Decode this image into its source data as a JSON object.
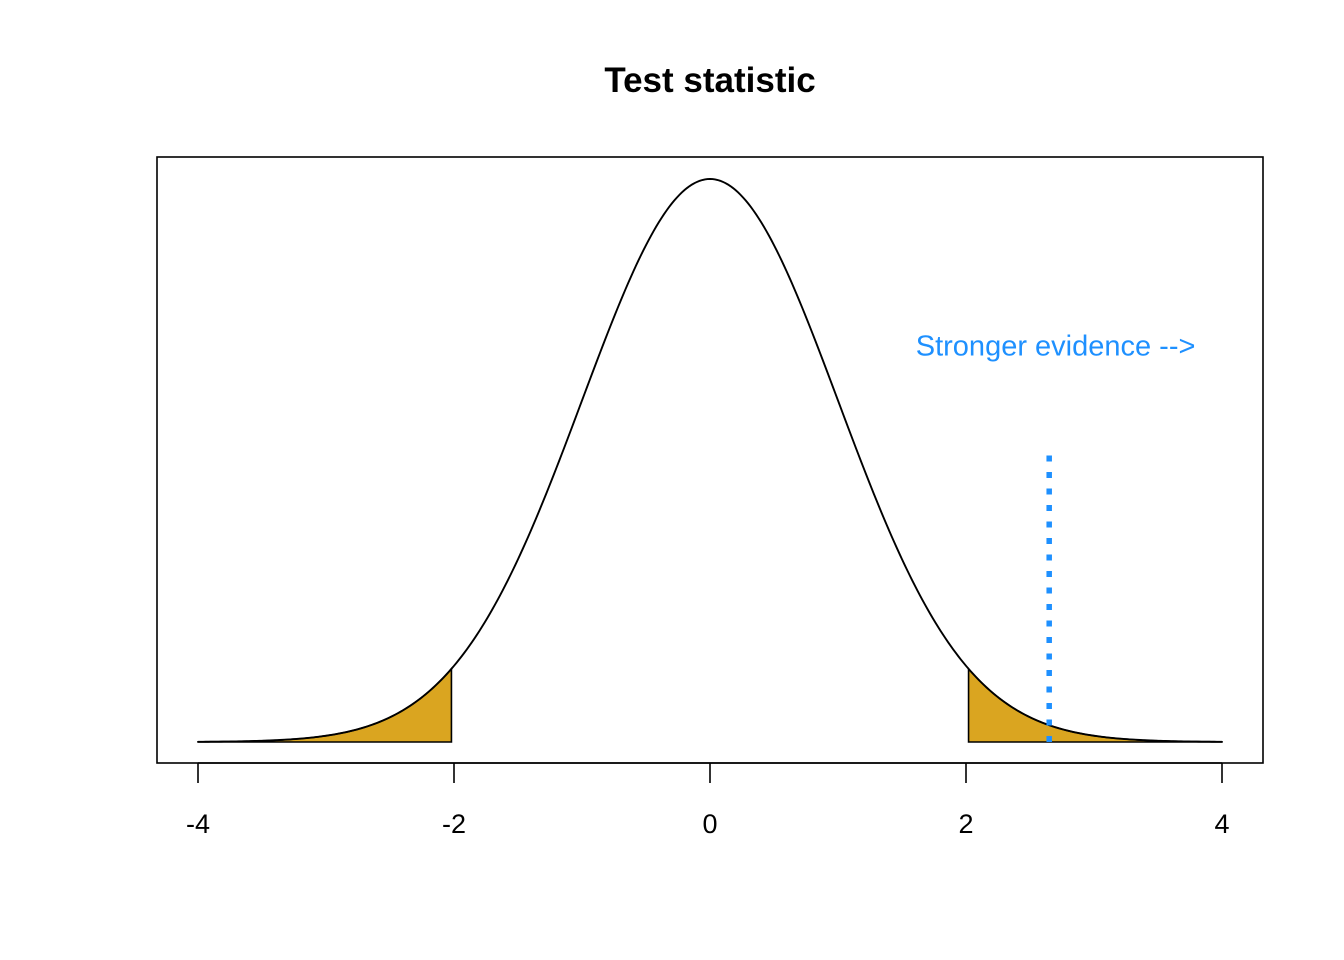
{
  "chart_data": {
    "type": "area",
    "title": "Test statistic",
    "xlabel": "",
    "ylabel": "",
    "xlim": [
      -4,
      4
    ],
    "ylim": [
      0,
      0.4
    ],
    "x_ticks": [
      -4,
      -2,
      0,
      2,
      4
    ],
    "x_tick_labels": [
      "-4",
      "-2",
      "0",
      "2",
      "4"
    ],
    "y_axis_shown": false,
    "grid": false,
    "curve": {
      "distribution": "standard normal density",
      "x_range": [
        -4,
        4
      ],
      "color": "#000000"
    },
    "shaded_regions": [
      {
        "from": -4,
        "to": -2.02,
        "color": "#DAA520"
      },
      {
        "from": 2.02,
        "to": 4,
        "color": "#DAA520"
      }
    ],
    "reference_line": {
      "x": 2.65,
      "y_from": 0,
      "y_to": 0.21,
      "style": "dotted",
      "color": "#1E90FF"
    },
    "annotations": [
      {
        "text": "Stronger evidence -->",
        "x": 2.7,
        "y": 0.274,
        "color": "#1E90FF"
      }
    ]
  }
}
